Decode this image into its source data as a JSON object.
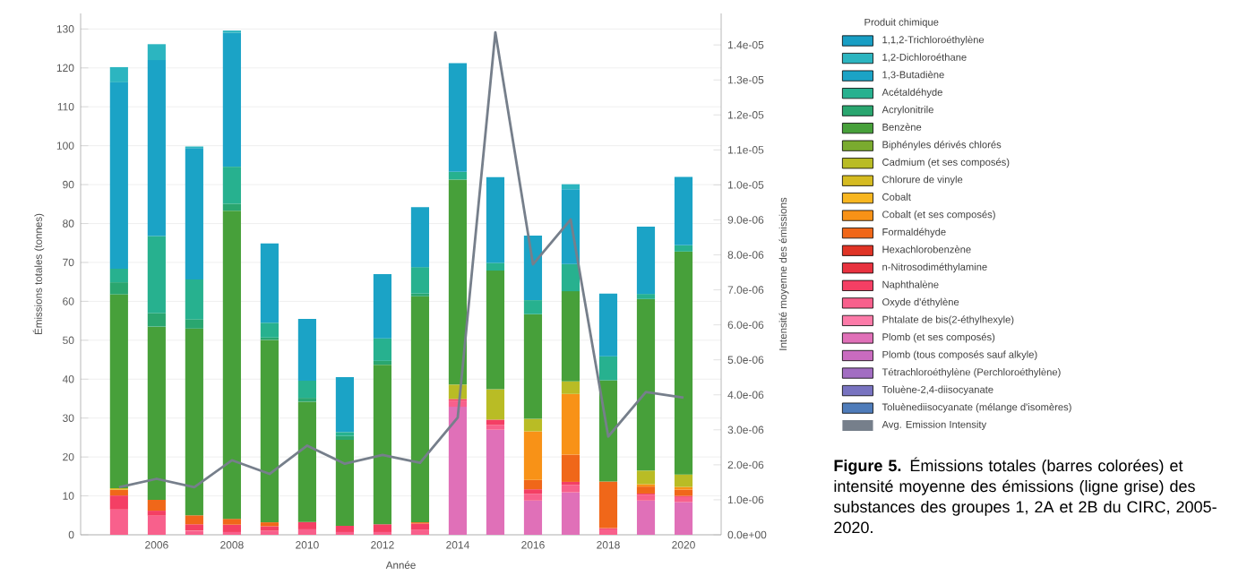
{
  "chart_data": {
    "type": "bar",
    "stacked": true,
    "categories": [
      null,
      "2006",
      null,
      "2008",
      null,
      "2010",
      null,
      "2012",
      null,
      "2014",
      null,
      "2016",
      null,
      "2018",
      null,
      "2020"
    ],
    "series": [
      {
        "name": "Toluènediisocyanate (mélange d'isomères)",
        "color": "#4f7cba",
        "values": [
          null,
          null,
          null,
          null,
          null,
          null,
          null,
          null,
          null,
          null,
          null,
          null,
          null,
          null,
          null,
          null
        ]
      },
      {
        "name": "Toluène-2,4-diisocyanate",
        "color": "#7873c0",
        "values": [
          null,
          null,
          null,
          null,
          null,
          null,
          null,
          null,
          null,
          null,
          null,
          null,
          null,
          null,
          null,
          null
        ]
      },
      {
        "name": "Tétrachloroéthylène (Perchloroéthylène)",
        "color": "#a26dc2",
        "values": [
          null,
          null,
          null,
          null,
          null,
          null,
          null,
          null,
          null,
          null,
          null,
          null,
          null,
          null,
          null,
          null
        ]
      },
      {
        "name": "Plomb (tous composés sauf alkyle)",
        "color": "#c96bbf",
        "values": [
          null,
          null,
          null,
          null,
          null,
          null,
          null,
          null,
          null,
          null,
          null,
          null,
          null,
          null,
          null,
          null
        ]
      },
      {
        "name": "Plomb (et ses composés)",
        "color": "#e070b8",
        "values": [
          null,
          null,
          null,
          null,
          null,
          null,
          null,
          null,
          null,
          32.9,
          27.0,
          8.8,
          10.9,
          null,
          8.8,
          8.4
        ]
      },
      {
        "name": "Phtalate de bis(2-éthylhexyle)",
        "color": "#fc7aa8",
        "values": [
          null,
          null,
          null,
          null,
          null,
          null,
          null,
          null,
          null,
          null,
          null,
          null,
          null,
          null,
          null,
          null
        ]
      },
      {
        "name": "Oxyde d'éthylène",
        "color": "#f8608c",
        "values": [
          6.5,
          4.9,
          1.1,
          0.7,
          1.0,
          1.4,
          0.7,
          0.7,
          1.3,
          1.5,
          1.2,
          1.7,
          1.9,
          1.4,
          1.5,
          1.3
        ]
      },
      {
        "name": "Naphthalène",
        "color": "#f43f64",
        "values": [
          3.6,
          1.3,
          1.6,
          1.9,
          1.2,
          1.9,
          1.6,
          2.0,
          1.6,
          0.5,
          1.4,
          1.2,
          0.8,
          0.3,
          0.3,
          0.3
        ]
      },
      {
        "name": "n-Nitrosodiméthylamine",
        "color": "#e8323f",
        "values": [
          null,
          null,
          null,
          null,
          null,
          null,
          null,
          null,
          null,
          null,
          null,
          null,
          null,
          null,
          null,
          null
        ]
      },
      {
        "name": "Hexachlorobenzène",
        "color": "#e03426",
        "values": [
          null,
          null,
          null,
          null,
          null,
          null,
          null,
          null,
          null,
          null,
          null,
          null,
          null,
          null,
          null,
          null
        ]
      },
      {
        "name": "Formaldéhyde",
        "color": "#f06719",
        "values": [
          1.5,
          2.8,
          2.3,
          1.5,
          1.0,
          null,
          null,
          null,
          0.3,
          null,
          null,
          2.4,
          7.0,
          12.0,
          1.8,
          1.6
        ]
      },
      {
        "name": "Cobalt (et ses composés)",
        "color": "#f89217",
        "values": [
          null,
          null,
          null,
          null,
          null,
          null,
          null,
          null,
          null,
          null,
          null,
          12.5,
          15.6,
          null,
          0.6,
          0.7
        ]
      },
      {
        "name": "Cobalt",
        "color": "#f8b620",
        "values": [
          null,
          null,
          null,
          null,
          null,
          null,
          null,
          null,
          null,
          null,
          null,
          null,
          null,
          null,
          null,
          null
        ]
      },
      {
        "name": "Chlorure de vinyle",
        "color": "#d5bb21",
        "values": [
          0.4,
          null,
          null,
          null,
          null,
          null,
          null,
          null,
          null,
          null,
          null,
          null,
          null,
          null,
          null,
          null
        ]
      },
      {
        "name": "Cadmium (et ses composés)",
        "color": "#b9bc25",
        "values": [
          null,
          null,
          null,
          null,
          null,
          null,
          null,
          null,
          null,
          3.7,
          7.8,
          3.2,
          3.2,
          null,
          3.5,
          3.2
        ]
      },
      {
        "name": "Biphényles dérivés chlorés",
        "color": "#7aab2f",
        "values": [
          null,
          null,
          null,
          null,
          null,
          null,
          null,
          null,
          null,
          null,
          null,
          null,
          null,
          null,
          null,
          null
        ]
      },
      {
        "name": "Benzène",
        "color": "#47a03a",
        "values": [
          49.8,
          44.5,
          48.0,
          79.2,
          46.9,
          30.9,
          22.1,
          41.0,
          58.1,
          52.7,
          30.5,
          26.9,
          23.2,
          26.0,
          44.1,
          57.3
        ]
      },
      {
        "name": "Acrylonitrile",
        "color": "#2aa66f",
        "values": [
          3.1,
          3.5,
          2.4,
          1.8,
          0.6,
          1.0,
          1.0,
          1.0,
          0.7,
          null,
          null,
          null,
          null,
          null,
          null,
          null
        ]
      },
      {
        "name": "Acétaldéhyde",
        "color": "#27b18f",
        "values": [
          3.5,
          19.8,
          10.2,
          9.5,
          3.8,
          4.4,
          1.0,
          5.8,
          6.8,
          2.0,
          2.0,
          3.6,
          7.0,
          6.2,
          1.3,
          1.6
        ]
      },
      {
        "name": "1,3-Butadiène",
        "color": "#1ba3c6",
        "values": [
          47.9,
          45.2,
          33.8,
          34.4,
          20.4,
          15.9,
          14.1,
          16.5,
          15.4,
          27.9,
          22.0,
          16.6,
          19.2,
          16.1,
          17.3,
          17.6
        ]
      },
      {
        "name": "1,2-Dichloroéthane",
        "color": "#2cb5c0",
        "values": [
          3.9,
          4.1,
          0.4,
          0.6,
          null,
          null,
          null,
          null,
          null,
          null,
          null,
          null,
          1.3,
          null,
          null,
          null
        ]
      },
      {
        "name": "1,1,2-Trichloroéthylène",
        "color": "#189ec4",
        "values": [
          null,
          null,
          null,
          null,
          null,
          null,
          null,
          null,
          null,
          null,
          null,
          null,
          null,
          null,
          null,
          null
        ]
      },
      {
        "name": "Avg. Emission Intensity",
        "color": "#767f8b",
        "type": "line",
        "axis": "y2",
        "values": [
          1.36e-06,
          1.6e-06,
          1.36e-06,
          2.13e-06,
          1.74e-06,
          2.55e-06,
          2.03e-06,
          2.28e-06,
          2.06e-06,
          3.35e-06,
          1.436e-05,
          7.73e-06,
          9.01e-06,
          2.81e-06,
          4.08e-06,
          3.92e-06
        ]
      }
    ],
    "xlabel": "Année",
    "ylabel": "Émissions totales (tonnes)",
    "y2label": "Intensité moyenne des émissions",
    "legend_title": "Produit chimique",
    "legend": "right",
    "grid": "y",
    "ylim": [
      0,
      134
    ],
    "yticks": [
      0,
      10,
      20,
      30,
      40,
      50,
      60,
      70,
      80,
      90,
      100,
      110,
      120,
      130
    ],
    "y2lim": [
      0,
      1.49e-05
    ],
    "y2ticks": [
      {
        "value": 0,
        "label": "0.0e+00"
      },
      {
        "value": 1e-06,
        "label": "1.0e-06"
      },
      {
        "value": 2e-06,
        "label": "2.0e-06"
      },
      {
        "value": 3e-06,
        "label": "3.0e-06"
      },
      {
        "value": 4e-06,
        "label": "4.0e-06"
      },
      {
        "value": 5e-06,
        "label": "5.0e-06"
      },
      {
        "value": 6e-06,
        "label": "6.0e-06"
      },
      {
        "value": 7e-06,
        "label": "7.0e-06"
      },
      {
        "value": 8e-06,
        "label": "8.0e-06"
      },
      {
        "value": 9e-06,
        "label": "9.0e-06"
      },
      {
        "value": 1e-05,
        "label": "1.0e-05"
      },
      {
        "value": 1.1e-05,
        "label": "1.1e-05"
      },
      {
        "value": 1.2e-05,
        "label": "1.2e-05"
      },
      {
        "value": 1.3e-05,
        "label": "1.3e-05"
      },
      {
        "value": 1.4e-05,
        "label": "1.4e-05"
      }
    ],
    "annotations": [
      "**Figure 5.** Émissions totales (barres colorées) et intensité moyenne des émissions (ligne grise) des substances des groupes 1, 2A et 2B du CIRC, 2005-2020."
    ]
  }
}
